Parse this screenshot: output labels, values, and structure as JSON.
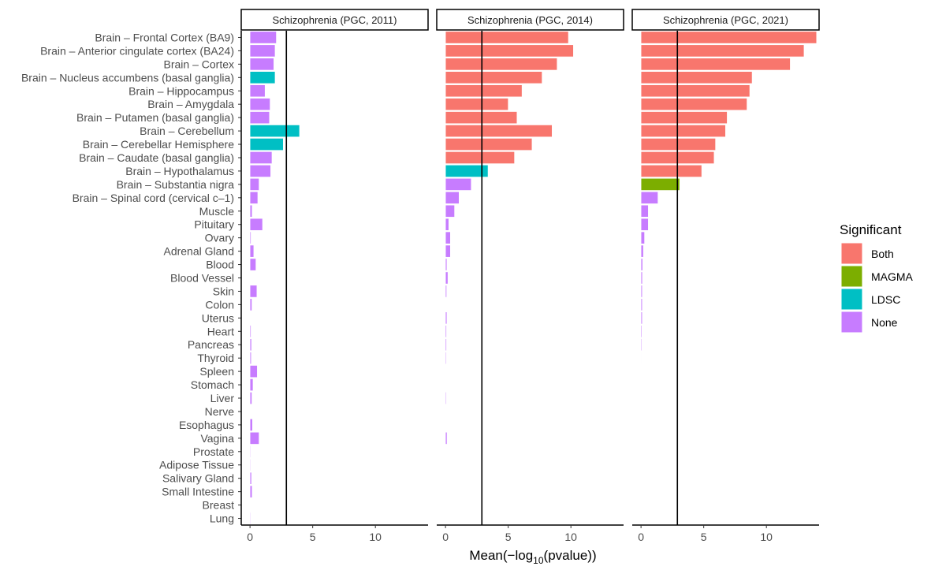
{
  "chart_data": {
    "type": "bar",
    "orientation": "horizontal",
    "xlabel": "Mean(−log10(pvalue))",
    "xlabel_parts": {
      "pre": "Mean(−log",
      "sub": "10",
      "post": "(pvalue))"
    },
    "ylabel": "",
    "xlim": [
      -0.7,
      14.2
    ],
    "xticks": [
      0,
      5,
      10
    ],
    "threshold": 2.9,
    "grid": false,
    "legend": {
      "title": "Significant",
      "placement": "right",
      "entries": [
        {
          "label": "Both",
          "color": "#F8766D"
        },
        {
          "label": "MAGMA",
          "color": "#7CAE00"
        },
        {
          "label": "LDSC",
          "color": "#00BFC4"
        },
        {
          "label": "None",
          "color": "#C77CFF"
        }
      ]
    },
    "categories": [
      "Brain – Frontal Cortex (BA9)",
      "Brain – Anterior cingulate cortex (BA24)",
      "Brain – Cortex",
      "Brain – Nucleus accumbens (basal ganglia)",
      "Brain – Hippocampus",
      "Brain – Amygdala",
      "Brain – Putamen (basal ganglia)",
      "Brain – Cerebellum",
      "Brain – Cerebellar Hemisphere",
      "Brain – Caudate (basal ganglia)",
      "Brain – Hypothalamus",
      "Brain – Substantia nigra",
      "Brain – Spinal cord (cervical c–1)",
      "Muscle",
      "Pituitary",
      "Ovary",
      "Adrenal Gland",
      "Blood",
      "Blood Vessel",
      "Skin",
      "Colon",
      "Uterus",
      "Heart",
      "Pancreas",
      "Thyroid",
      "Spleen",
      "Stomach",
      "Liver",
      "Nerve",
      "Esophagus",
      "Vagina",
      "Prostate",
      "Adipose Tissue",
      "Salivary Gland",
      "Small Intestine",
      "Breast",
      "Lung"
    ],
    "panels": [
      {
        "title": "Schizophrenia (PGC, 2011)",
        "values": [
          2.1,
          2.0,
          1.9,
          2.0,
          1.2,
          1.6,
          1.55,
          3.95,
          2.65,
          1.75,
          1.65,
          0.72,
          0.62,
          0.17,
          1.0,
          0.08,
          0.3,
          0.47,
          0.02,
          0.55,
          0.15,
          0.02,
          0.08,
          0.12,
          0.1,
          0.58,
          0.24,
          0.15,
          0.02,
          0.2,
          0.72,
          0.05,
          0.05,
          0.12,
          0.17,
          0.0,
          0.05
        ],
        "significant": [
          "None",
          "None",
          "None",
          "LDSC",
          "None",
          "None",
          "None",
          "LDSC",
          "LDSC",
          "None",
          "None",
          "None",
          "None",
          "None",
          "None",
          "None",
          "None",
          "None",
          "None",
          "None",
          "None",
          "None",
          "None",
          "None",
          "None",
          "None",
          "None",
          "None",
          "None",
          "None",
          "None",
          "None",
          "None",
          "None",
          "None",
          "None",
          "None"
        ]
      },
      {
        "title": "Schizophrenia (PGC, 2014)",
        "values": [
          9.8,
          10.2,
          8.9,
          7.7,
          6.1,
          5.0,
          5.7,
          8.5,
          6.9,
          5.5,
          3.39,
          2.05,
          1.08,
          0.72,
          0.26,
          0.39,
          0.39,
          0.11,
          0.19,
          0.09,
          0.02,
          0.11,
          0.08,
          0.08,
          0.06,
          0.02,
          0.03,
          0.06,
          0.02,
          0.02,
          0.12,
          0.02,
          0.02,
          0.02,
          0.02,
          0.0,
          0.0
        ],
        "significant": [
          "Both",
          "Both",
          "Both",
          "Both",
          "Both",
          "Both",
          "Both",
          "Both",
          "Both",
          "Both",
          "LDSC",
          "None",
          "None",
          "None",
          "None",
          "None",
          "None",
          "None",
          "None",
          "None",
          "None",
          "None",
          "None",
          "None",
          "None",
          "None",
          "None",
          "None",
          "None",
          "None",
          "None",
          "None",
          "None",
          "None",
          "None",
          "None",
          "None"
        ]
      },
      {
        "title": "Schizophrenia (PGC, 2021)",
        "values": [
          14.0,
          13.0,
          11.9,
          8.86,
          8.67,
          8.45,
          6.87,
          6.74,
          5.94,
          5.83,
          4.84,
          3.08,
          1.35,
          0.58,
          0.58,
          0.28,
          0.19,
          0.13,
          0.11,
          0.1,
          0.1,
          0.1,
          0.07,
          0.06,
          0.04,
          0.03,
          0.03,
          0.03,
          0.03,
          0.02,
          0.02,
          0.02,
          0.01,
          0.01,
          0.01,
          0.0,
          0.0
        ],
        "significant": [
          "Both",
          "Both",
          "Both",
          "Both",
          "Both",
          "Both",
          "Both",
          "Both",
          "Both",
          "Both",
          "Both",
          "MAGMA",
          "None",
          "None",
          "None",
          "None",
          "None",
          "None",
          "None",
          "None",
          "None",
          "None",
          "None",
          "None",
          "None",
          "None",
          "None",
          "None",
          "None",
          "None",
          "None",
          "None",
          "None",
          "None",
          "None",
          "None",
          "None"
        ]
      }
    ]
  }
}
